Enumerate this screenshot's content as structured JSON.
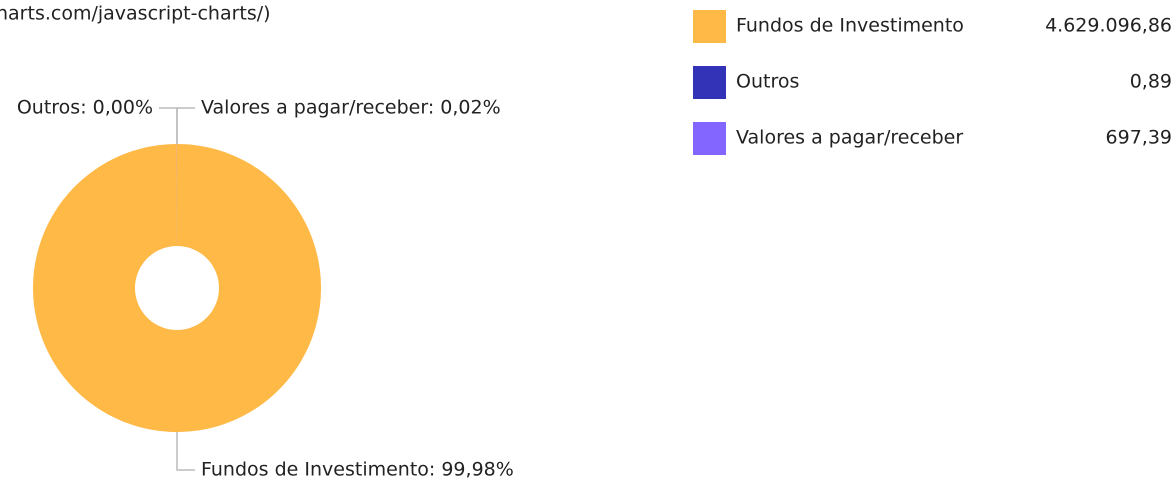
{
  "chart_data": {
    "type": "pie",
    "credit": "harts.com/javascript-charts/)",
    "categories": [
      "Fundos de Investimento",
      "Outros",
      "Valores a pagar/receber"
    ],
    "values": [
      4629096.86,
      0.89,
      697.39
    ],
    "value_labels": [
      "4.629.096,86",
      "0,89",
      "697,39"
    ],
    "slice_labels": [
      "Fundos de Investimento: 99,98%",
      "Outros: 0,00%",
      "Valores a pagar/receber: 0,02%"
    ],
    "colors": [
      "#ffb946",
      "#3333b8",
      "#8266ff"
    ],
    "donut": true,
    "legend": "top-right"
  }
}
